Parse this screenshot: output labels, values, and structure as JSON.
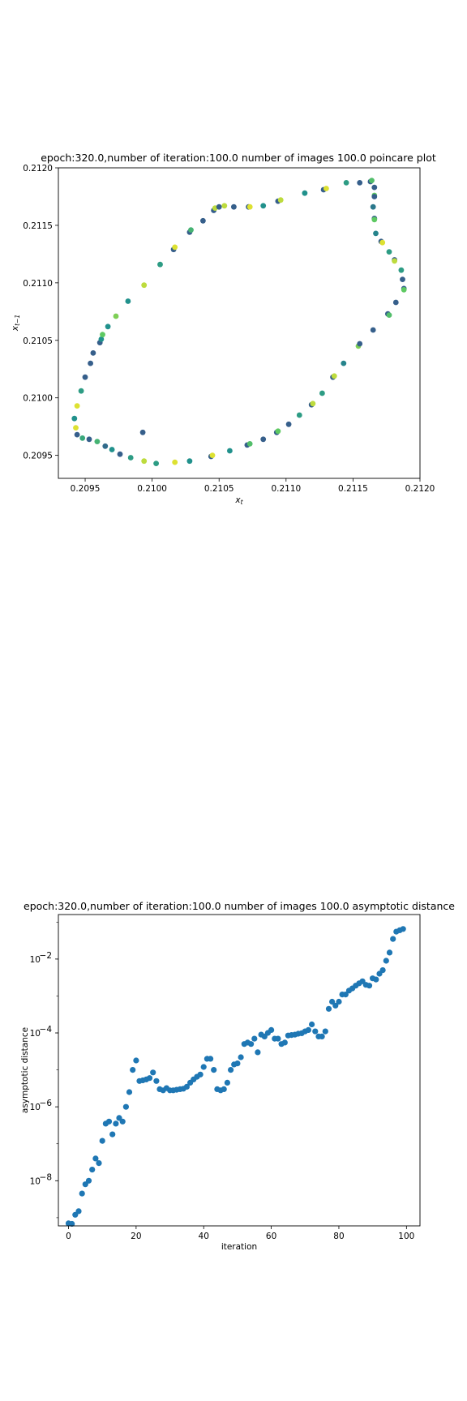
{
  "colors": {
    "background": "#ffffff",
    "asymptotic_marker": "#1f77b4",
    "viridis_ramp": [
      "#440154",
      "#3b528b",
      "#21918c",
      "#5ec962",
      "#fde725"
    ]
  },
  "chart_data": [
    {
      "type": "scatter",
      "title": "epoch:320.0,number of iteration:100.0 number of images 100.0 poincare plot",
      "xlabel": "x_t",
      "ylabel": "x_{t-1}",
      "xlim": [
        0.2093,
        0.212
      ],
      "ylim": [
        0.2093,
        0.212
      ],
      "xticks": [
        "0.2095",
        "0.2100",
        "0.2105",
        "0.2110",
        "0.2115",
        "0.2120"
      ],
      "yticks": [
        "0.2095",
        "0.2100",
        "0.2105",
        "0.2110",
        "0.2115",
        "0.2120"
      ],
      "grid": false,
      "colormap": "viridis",
      "points": [
        {
          "x": 0.20942,
          "y": 0.20982,
          "c": 0.5
        },
        {
          "x": 0.20943,
          "y": 0.20974,
          "c": 0.95
        },
        {
          "x": 0.20944,
          "y": 0.20968,
          "c": 0.3
        },
        {
          "x": 0.20944,
          "y": 0.20993,
          "c": 0.95
        },
        {
          "x": 0.20947,
          "y": 0.21006,
          "c": 0.55
        },
        {
          "x": 0.20948,
          "y": 0.20965,
          "c": 0.6
        },
        {
          "x": 0.2095,
          "y": 0.21018,
          "c": 0.3
        },
        {
          "x": 0.20953,
          "y": 0.20964,
          "c": 0.3
        },
        {
          "x": 0.20954,
          "y": 0.2103,
          "c": 0.3
        },
        {
          "x": 0.20956,
          "y": 0.21039,
          "c": 0.3
        },
        {
          "x": 0.20959,
          "y": 0.20962,
          "c": 0.65
        },
        {
          "x": 0.20961,
          "y": 0.21048,
          "c": 0.3
        },
        {
          "x": 0.20962,
          "y": 0.21051,
          "c": 0.5
        },
        {
          "x": 0.20963,
          "y": 0.21055,
          "c": 0.75
        },
        {
          "x": 0.20965,
          "y": 0.20958,
          "c": 0.35
        },
        {
          "x": 0.20967,
          "y": 0.21062,
          "c": 0.5
        },
        {
          "x": 0.2097,
          "y": 0.20955,
          "c": 0.5
        },
        {
          "x": 0.20973,
          "y": 0.21071,
          "c": 0.8
        },
        {
          "x": 0.20976,
          "y": 0.20951,
          "c": 0.3
        },
        {
          "x": 0.20982,
          "y": 0.21084,
          "c": 0.5
        },
        {
          "x": 0.20984,
          "y": 0.20948,
          "c": 0.55
        },
        {
          "x": 0.20993,
          "y": 0.2097,
          "c": 0.3
        },
        {
          "x": 0.20994,
          "y": 0.21098,
          "c": 0.9
        },
        {
          "x": 0.20994,
          "y": 0.20945,
          "c": 0.9
        },
        {
          "x": 0.21003,
          "y": 0.20943,
          "c": 0.55
        },
        {
          "x": 0.21006,
          "y": 0.21116,
          "c": 0.55
        },
        {
          "x": 0.21016,
          "y": 0.21129,
          "c": 0.3
        },
        {
          "x": 0.21017,
          "y": 0.21131,
          "c": 0.95
        },
        {
          "x": 0.21017,
          "y": 0.20944,
          "c": 0.95
        },
        {
          "x": 0.21028,
          "y": 0.20945,
          "c": 0.5
        },
        {
          "x": 0.21028,
          "y": 0.21144,
          "c": 0.3
        },
        {
          "x": 0.21029,
          "y": 0.21146,
          "c": 0.65
        },
        {
          "x": 0.21038,
          "y": 0.21154,
          "c": 0.3
        },
        {
          "x": 0.21044,
          "y": 0.20949,
          "c": 0.3
        },
        {
          "x": 0.21045,
          "y": 0.2095,
          "c": 0.95
        },
        {
          "x": 0.21046,
          "y": 0.21163,
          "c": 0.3
        },
        {
          "x": 0.21047,
          "y": 0.21165,
          "c": 0.9
        },
        {
          "x": 0.2105,
          "y": 0.21166,
          "c": 0.3
        },
        {
          "x": 0.21054,
          "y": 0.21167,
          "c": 0.9
        },
        {
          "x": 0.21058,
          "y": 0.20954,
          "c": 0.5
        },
        {
          "x": 0.21061,
          "y": 0.21166,
          "c": 0.3
        },
        {
          "x": 0.21071,
          "y": 0.20959,
          "c": 0.3
        },
        {
          "x": 0.21072,
          "y": 0.21166,
          "c": 0.3
        },
        {
          "x": 0.21073,
          "y": 0.2096,
          "c": 0.7
        },
        {
          "x": 0.21073,
          "y": 0.21166,
          "c": 0.95
        },
        {
          "x": 0.21083,
          "y": 0.21167,
          "c": 0.5
        },
        {
          "x": 0.21083,
          "y": 0.20964,
          "c": 0.3
        },
        {
          "x": 0.21093,
          "y": 0.2097,
          "c": 0.3
        },
        {
          "x": 0.21094,
          "y": 0.21171,
          "c": 0.3
        },
        {
          "x": 0.21094,
          "y": 0.20971,
          "c": 0.75
        },
        {
          "x": 0.21096,
          "y": 0.21172,
          "c": 0.9
        },
        {
          "x": 0.21102,
          "y": 0.20977,
          "c": 0.3
        },
        {
          "x": 0.2111,
          "y": 0.20985,
          "c": 0.55
        },
        {
          "x": 0.21114,
          "y": 0.21178,
          "c": 0.5
        },
        {
          "x": 0.21119,
          "y": 0.20994,
          "c": 0.3
        },
        {
          "x": 0.2112,
          "y": 0.20995,
          "c": 0.9
        },
        {
          "x": 0.21127,
          "y": 0.21004,
          "c": 0.55
        },
        {
          "x": 0.21128,
          "y": 0.21181,
          "c": 0.3
        },
        {
          "x": 0.2113,
          "y": 0.21182,
          "c": 0.95
        },
        {
          "x": 0.21135,
          "y": 0.21018,
          "c": 0.3
        },
        {
          "x": 0.21136,
          "y": 0.21019,
          "c": 0.9
        },
        {
          "x": 0.21143,
          "y": 0.2103,
          "c": 0.45
        },
        {
          "x": 0.21145,
          "y": 0.21187,
          "c": 0.55
        },
        {
          "x": 0.21154,
          "y": 0.21045,
          "c": 0.8
        },
        {
          "x": 0.21155,
          "y": 0.21047,
          "c": 0.3
        },
        {
          "x": 0.21155,
          "y": 0.21187,
          "c": 0.3
        },
        {
          "x": 0.21163,
          "y": 0.21188,
          "c": 0.3
        },
        {
          "x": 0.21164,
          "y": 0.21189,
          "c": 0.7
        },
        {
          "x": 0.21165,
          "y": 0.21059,
          "c": 0.3
        },
        {
          "x": 0.21165,
          "y": 0.21166,
          "c": 0.4
        },
        {
          "x": 0.21166,
          "y": 0.21183,
          "c": 0.3
        },
        {
          "x": 0.21166,
          "y": 0.21176,
          "c": 0.75
        },
        {
          "x": 0.21166,
          "y": 0.21175,
          "c": 0.3
        },
        {
          "x": 0.21166,
          "y": 0.21156,
          "c": 0.3
        },
        {
          "x": 0.21166,
          "y": 0.21155,
          "c": 0.75
        },
        {
          "x": 0.21167,
          "y": 0.21143,
          "c": 0.45
        },
        {
          "x": 0.21171,
          "y": 0.21136,
          "c": 0.3
        },
        {
          "x": 0.21172,
          "y": 0.21135,
          "c": 0.95
        },
        {
          "x": 0.21176,
          "y": 0.21073,
          "c": 0.3
        },
        {
          "x": 0.21177,
          "y": 0.21072,
          "c": 0.7
        },
        {
          "x": 0.21177,
          "y": 0.21127,
          "c": 0.55
        },
        {
          "x": 0.21181,
          "y": 0.2112,
          "c": 0.3
        },
        {
          "x": 0.21181,
          "y": 0.21119,
          "c": 0.9
        },
        {
          "x": 0.21182,
          "y": 0.21083,
          "c": 0.3
        },
        {
          "x": 0.21186,
          "y": 0.21111,
          "c": 0.55
        },
        {
          "x": 0.21187,
          "y": 0.21103,
          "c": 0.3
        },
        {
          "x": 0.21188,
          "y": 0.21095,
          "c": 0.3
        },
        {
          "x": 0.21188,
          "y": 0.21094,
          "c": 0.75
        }
      ]
    },
    {
      "type": "scatter",
      "title": "epoch:320.0,number of iteration:100.0  number of images 100.0 asymptotic distance",
      "xlabel": "iteration",
      "ylabel": "asymptotic distance",
      "xlim": [
        -3,
        104
      ],
      "ylim": [
        6e-10,
        0.16
      ],
      "yscale": "log",
      "xticks": [
        "0",
        "20",
        "40",
        "60",
        "80",
        "100"
      ],
      "yticks": [
        "10^-8",
        "10^-6",
        "10^-4",
        "10^-2"
      ],
      "grid": false,
      "x": [
        0,
        1,
        2,
        3,
        4,
        5,
        6,
        7,
        8,
        9,
        10,
        11,
        12,
        13,
        14,
        15,
        16,
        17,
        18,
        19,
        20,
        21,
        22,
        23,
        24,
        25,
        26,
        27,
        28,
        29,
        30,
        31,
        32,
        33,
        34,
        35,
        36,
        37,
        38,
        39,
        40,
        41,
        42,
        43,
        44,
        45,
        46,
        47,
        48,
        49,
        50,
        51,
        52,
        53,
        54,
        55,
        56,
        57,
        58,
        59,
        60,
        61,
        62,
        63,
        64,
        65,
        66,
        67,
        68,
        69,
        70,
        71,
        72,
        73,
        74,
        75,
        76,
        77,
        78,
        79,
        80,
        81,
        82,
        83,
        84,
        85,
        86,
        87,
        88,
        89,
        90,
        91,
        92,
        93,
        94,
        95,
        96,
        97,
        98,
        99
      ],
      "y": [
        7e-10,
        6.8e-10,
        1.2e-09,
        1.5e-09,
        4.5e-09,
        8e-09,
        1e-08,
        2e-08,
        4e-08,
        3e-08,
        1.2e-07,
        3.5e-07,
        4e-07,
        1.8e-07,
        3.5e-07,
        5e-07,
        4e-07,
        1e-06,
        2.5e-06,
        1e-05,
        1.8e-05,
        5e-06,
        5.2e-06,
        5.5e-06,
        6e-06,
        8.5e-06,
        5e-06,
        3e-06,
        2.8e-06,
        3.2e-06,
        2.8e-06,
        2.8e-06,
        2.9e-06,
        3e-06,
        3.1e-06,
        3.5e-06,
        4.5e-06,
        5.5e-06,
        6.5e-06,
        7.5e-06,
        1.2e-05,
        2e-05,
        2e-05,
        1e-05,
        3e-06,
        2.8e-06,
        3e-06,
        4.5e-06,
        1e-05,
        1.4e-05,
        1.5e-05,
        2.2e-05,
        5e-05,
        5.5e-05,
        5e-05,
        7e-05,
        3e-05,
        9e-05,
        8e-05,
        0.0001,
        0.00012,
        7e-05,
        7e-05,
        5e-05,
        5.5e-05,
        8.5e-05,
        8.8e-05,
        9e-05,
        9.5e-05,
        9.8e-05,
        0.00011,
        0.00012,
        0.00017,
        0.00011,
        8e-05,
        8e-05,
        0.00011,
        0.00045,
        0.0007,
        0.00055,
        0.0007,
        0.0011,
        0.0011,
        0.0014,
        0.0016,
        0.0019,
        0.0022,
        0.0025,
        0.002,
        0.0019,
        0.003,
        0.0028,
        0.004,
        0.005,
        0.009,
        0.015,
        0.035,
        0.055,
        0.06,
        0.065
      ]
    }
  ]
}
